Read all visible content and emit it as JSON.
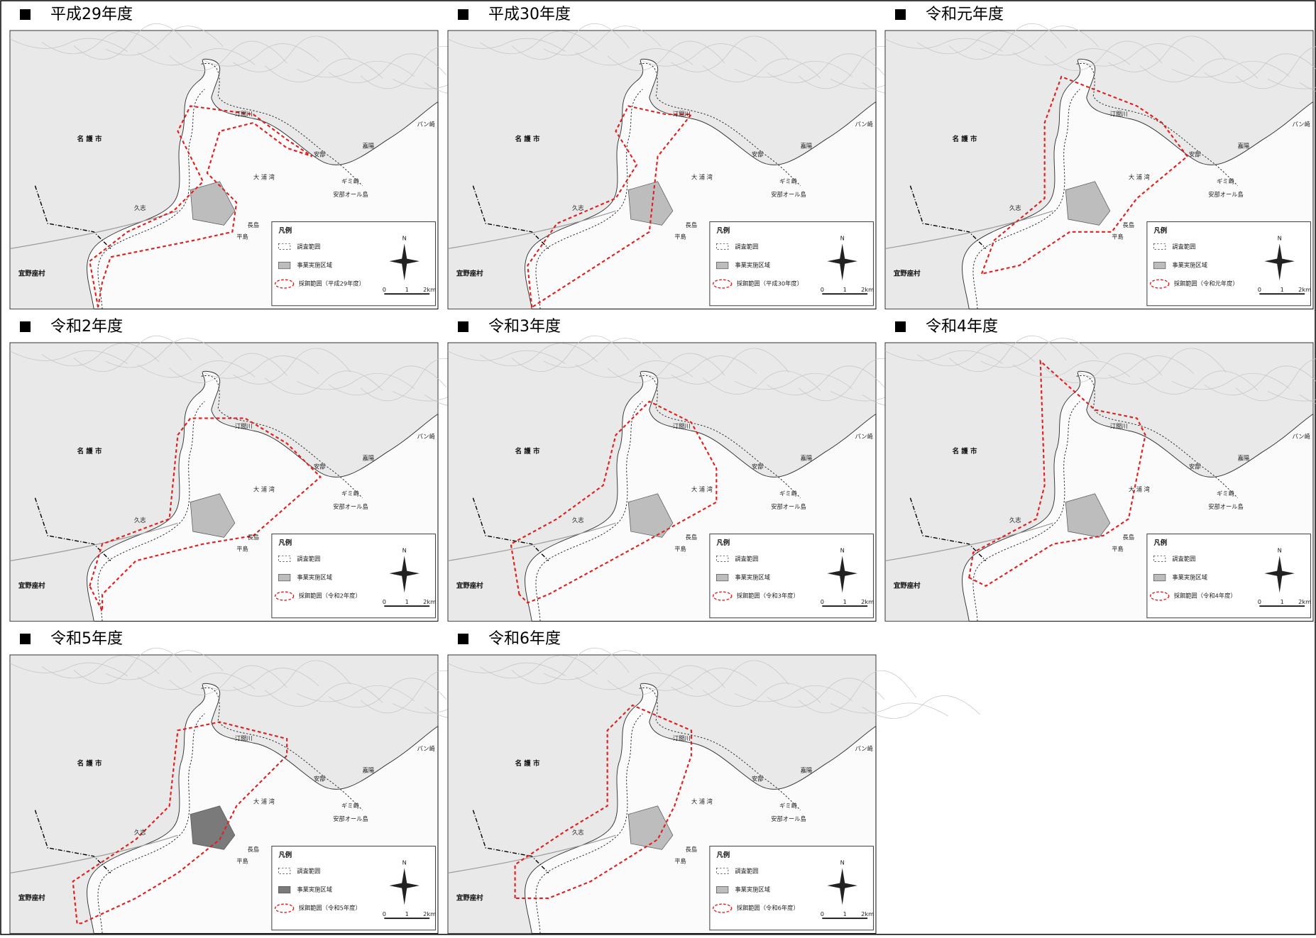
{
  "panels": [
    {
      "title": "平成29年度",
      "legend_foraging": "採餌範囲（平成29年度）",
      "project_color": "#bdbdbd"
    },
    {
      "title": "平成30年度",
      "legend_foraging": "採餌範囲（平成30年度）",
      "project_color": "#bdbdbd"
    },
    {
      "title": "令和元年度",
      "legend_foraging": "採餌範囲（令和元年度）",
      "project_color": "#bdbdbd"
    },
    {
      "title": "令和2年度",
      "legend_foraging": "採餌範囲（令和2年度）",
      "project_color": "#bdbdbd"
    },
    {
      "title": "令和3年度",
      "legend_foraging": "採餌範囲（令和3年度）",
      "project_color": "#bdbdbd"
    },
    {
      "title": "令和4年度",
      "legend_foraging": "採餌範囲（令和4年度）",
      "project_color": "#bdbdbd"
    },
    {
      "title": "令和5年度",
      "legend_foraging": "採餌範囲（令和5年度）",
      "project_color": "#7a7a7a"
    },
    {
      "title": "令和6年度",
      "legend_foraging": "採餌範囲（令和6年度）",
      "project_color": "#bdbdbd"
    }
  ],
  "places": {
    "nago": "名 護 市",
    "ginoza": "宜野座村",
    "oura_bay": "大 浦 湾",
    "pansaki": "パン崎",
    "abu": "安部",
    "kayo": "嘉陽",
    "gimisaki": "ギミ崎",
    "abu_oru": "安部オール島",
    "nagashima": "長島",
    "hirashima": "平島",
    "kushi": "久志",
    "temagawa": "汀間川"
  },
  "legend": {
    "title": "凡例",
    "survey": "調査範囲",
    "project": "事業実施区域",
    "north": "N",
    "scale": [
      "0",
      "1",
      "2km"
    ]
  }
}
